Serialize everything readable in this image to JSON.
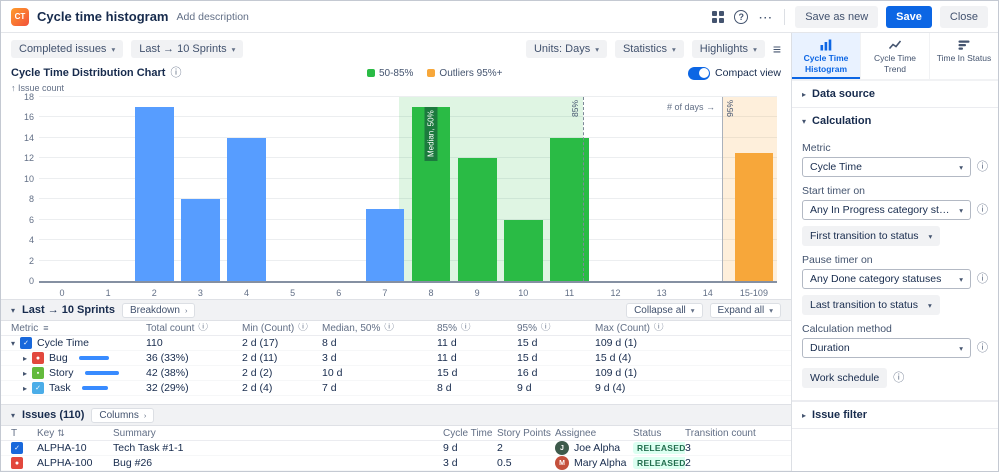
{
  "header": {
    "logo_text": "CT",
    "title": "Cycle time histogram",
    "add_description": "Add description",
    "buttons": {
      "save_as_new": "Save as new",
      "save": "Save",
      "close": "Close"
    }
  },
  "toolbar": {
    "completed_issues": "Completed issues",
    "sprint_range": "Last → 10 Sprints",
    "units": "Units: Days",
    "statistics": "Statistics",
    "highlights": "Highlights"
  },
  "chart": {
    "title": "Cycle Time Distribution Chart",
    "legend": [
      {
        "label": "50-85%",
        "color": "#2abb45"
      },
      {
        "label": "Outliers 95%+",
        "color": "#f7a73a"
      }
    ],
    "compact_view_label": "Compact view",
    "y_axis_label": "↑ Issue count",
    "x_axis_label": "# of days →"
  },
  "chart_data": {
    "type": "bar",
    "title": "Cycle Time Distribution Chart",
    "xlabel": "# of days",
    "ylabel": "Issue count",
    "categories": [
      "0",
      "1",
      "2",
      "3",
      "4",
      "5",
      "6",
      "7",
      "8",
      "9",
      "10",
      "11",
      "12",
      "13",
      "14",
      "15-109"
    ],
    "values": [
      0,
      0,
      17,
      8,
      14,
      0,
      0,
      7,
      17,
      12,
      6,
      14,
      0,
      0,
      0,
      12.5
    ],
    "bar_colors": [
      "blue",
      "blue",
      "blue",
      "blue",
      "blue",
      "blue",
      "blue",
      "blue",
      "green",
      "green",
      "green",
      "green",
      "green",
      "green",
      "green",
      "orange"
    ],
    "colors": {
      "blue": "#579dff",
      "green": "#2abb45",
      "orange": "#f7a73a"
    },
    "ylim": [
      0,
      18
    ],
    "y_ticks": [
      0,
      2,
      4,
      6,
      8,
      10,
      12,
      14,
      16,
      18
    ],
    "grid": true,
    "annotations": {
      "median": {
        "label": "Median, 50%",
        "slot": 8
      },
      "p85": {
        "label": "85%",
        "from": 7.8,
        "to": 11.8
      },
      "p95": {
        "label": "95%",
        "from": 14.8,
        "to": 16
      }
    }
  },
  "breakdown": {
    "title": "Last → 10 Sprints",
    "breakdown_button": "Breakdown",
    "collapse_all": "Collapse all",
    "expand_all": "Expand all",
    "columns": [
      "Metric",
      "Total count",
      "Min (Count)",
      "Median, 50%",
      "85%",
      "95%",
      "Max (Count)"
    ],
    "rows": [
      {
        "label": "Cycle Time",
        "icon": "checkbox",
        "icon_color": "#1868db",
        "glyph": "✓",
        "expanded": true,
        "share": 0,
        "total": "110",
        "min": "2 d (17)",
        "median": "8 d",
        "p85": "11 d",
        "p95": "15 d",
        "max": "109 d (1)"
      },
      {
        "label": "Bug",
        "icon": "bug-type",
        "icon_color": "#e2483d",
        "glyph": "●",
        "expanded": false,
        "share": 33,
        "total": "36 (33%)",
        "min": "2 d (11)",
        "median": "3 d",
        "p85": "11 d",
        "p95": "15 d",
        "max": "15 d (4)"
      },
      {
        "label": "Story",
        "icon": "story-type",
        "icon_color": "#63ba3c",
        "glyph": "▪",
        "expanded": false,
        "share": 38,
        "total": "42 (38%)",
        "min": "2 d (2)",
        "median": "10 d",
        "p85": "15 d",
        "p95": "16 d",
        "max": "109 d (1)"
      },
      {
        "label": "Task",
        "icon": "task-type",
        "icon_color": "#4bade8",
        "glyph": "✓",
        "expanded": false,
        "share": 29,
        "total": "32 (29%)",
        "min": "2 d (4)",
        "median": "7 d",
        "p85": "8 d",
        "p95": "9 d",
        "max": "9 d (4)"
      }
    ]
  },
  "issues": {
    "title": "Issues (110)",
    "columns_button": "Columns",
    "columns": [
      "T",
      "Key",
      "Summary",
      "Cycle Time",
      "Story Points",
      "Assignee",
      "Status",
      "Transition count"
    ],
    "rows": [
      {
        "type": "task-type",
        "type_color": "#1868db",
        "glyph": "✓",
        "key": "ALPHA-10",
        "summary": "Tech Task #1-1",
        "cycle_time": "9 d",
        "story_points": "2",
        "assignee": "Joe Alpha",
        "avatar_color": "#3d5a4b",
        "status": "RELEASED",
        "transitions": "3"
      },
      {
        "type": "bug-type",
        "type_color": "#e2483d",
        "glyph": "●",
        "key": "ALPHA-100",
        "summary": "Bug #26",
        "cycle_time": "3 d",
        "story_points": "0.5",
        "assignee": "Mary Alpha",
        "avatar_color": "#c4503c",
        "status": "RELEASED",
        "transitions": "2"
      }
    ]
  },
  "sidebar": {
    "tabs": [
      {
        "label": "Cycle Time Histogram",
        "active": true
      },
      {
        "label": "Cycle Time Trend",
        "active": false
      },
      {
        "label": "Time In Status",
        "active": false
      }
    ],
    "sections": {
      "data_source": "Data source",
      "calculation": "Calculation",
      "issue_filter": "Issue filter"
    },
    "calculation": {
      "metric_label": "Metric",
      "metric_value": "Cycle Time",
      "start_label": "Start timer on",
      "start_value": "Any In Progress category statuses",
      "start_sub": "First transition to status",
      "pause_label": "Pause timer on",
      "pause_value": "Any Done category statuses",
      "pause_sub": "Last transition to status",
      "method_label": "Calculation method",
      "method_value": "Duration",
      "work_schedule": "Work schedule"
    }
  }
}
